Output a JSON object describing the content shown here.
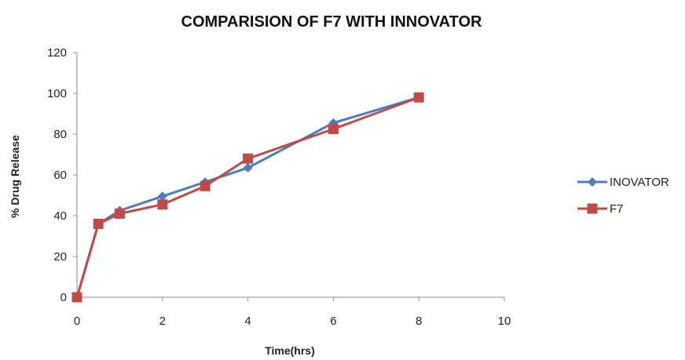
{
  "chart_data": {
    "type": "line",
    "title": "COMPARISION OF F7 WITH INNOVATOR",
    "xlabel": "Time(hrs)",
    "ylabel": "% Drug Release",
    "xlim": [
      0,
      10
    ],
    "ylim": [
      0,
      120
    ],
    "xticks": [
      0,
      2,
      4,
      6,
      8,
      10
    ],
    "yticks": [
      0,
      20,
      40,
      60,
      80,
      100,
      120
    ],
    "grid": false,
    "legend_position": "right",
    "series": [
      {
        "name": "INOVATOR",
        "color": "#4a7ebb",
        "marker": "diamond",
        "x": [
          0,
          0.5,
          1,
          2,
          3,
          4,
          6,
          8
        ],
        "y": [
          0,
          36,
          42.5,
          49.5,
          56.5,
          63.5,
          85.5,
          98
        ]
      },
      {
        "name": "F7",
        "color": "#be4b48",
        "marker": "square",
        "x": [
          0,
          0.5,
          1,
          2,
          3,
          4,
          6,
          8
        ],
        "y": [
          0,
          36,
          41,
          45.5,
          54.5,
          68,
          82.5,
          98
        ]
      }
    ]
  }
}
